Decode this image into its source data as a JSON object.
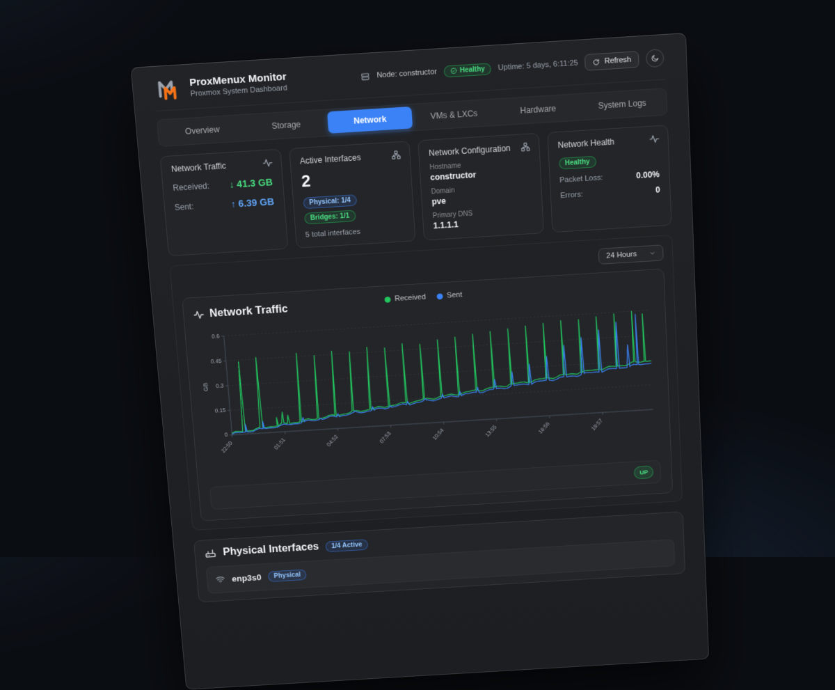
{
  "header": {
    "app_title": "ProxMenux Monitor",
    "app_subtitle": "Proxmox System Dashboard",
    "node_label": "Node: constructor",
    "health_badge": "Healthy",
    "uptime": "Uptime: 5 days, 6:11:25",
    "refresh_label": "Refresh"
  },
  "tabs": [
    {
      "label": "Overview"
    },
    {
      "label": "Storage"
    },
    {
      "label": "Network",
      "active": true
    },
    {
      "label": "VMs & LXCs"
    },
    {
      "label": "Hardware"
    },
    {
      "label": "System Logs"
    }
  ],
  "stats": {
    "traffic": {
      "title": "Network Traffic",
      "received_label": "Received:",
      "received_arrow": "↓",
      "received_value": "41.3 GB",
      "sent_label": "Sent:",
      "sent_arrow": "↑",
      "sent_value": "6.39 GB"
    },
    "interfaces": {
      "title": "Active Interfaces",
      "count": "2",
      "physical_badge": "Physical: 1/4",
      "bridges_badge": "Bridges: 1/1",
      "total": "5 total interfaces"
    },
    "config": {
      "title": "Network Configuration",
      "hostname_label": "Hostname",
      "hostname": "constructor",
      "domain_label": "Domain",
      "domain": "pve",
      "dns_label": "Primary DNS",
      "dns": "1.1.1.1"
    },
    "health": {
      "title": "Network Health",
      "status": "Healthy",
      "packet_loss_label": "Packet Loss:",
      "packet_loss": "0.00%",
      "errors_label": "Errors:",
      "errors": "0"
    }
  },
  "controls": {
    "time_range": "24 Hours"
  },
  "chart_card": {
    "title": "Network Traffic",
    "status_badge": "UP"
  },
  "chart_data": {
    "type": "line",
    "title": "Network Traffic",
    "ylabel": "GB",
    "ylim": [
      0,
      0.6
    ],
    "yticks": [
      0,
      0.15,
      0.3,
      0.45,
      0.6
    ],
    "x_range_hours": 24,
    "grid": true,
    "legend_position": "top-center",
    "x_ticks": [
      {
        "t": 0,
        "label": "22:50"
      },
      {
        "t": 3.02,
        "label": "01:51"
      },
      {
        "t": 6.03,
        "label": "04:52"
      },
      {
        "t": 9.05,
        "label": "07:53"
      },
      {
        "t": 12.07,
        "label": "10:54"
      },
      {
        "t": 15.08,
        "label": "13:55"
      },
      {
        "t": 18.1,
        "label": "16:56"
      },
      {
        "t": 21.12,
        "label": "19:57"
      }
    ],
    "series": [
      {
        "name": "Received",
        "color": "#22c55e",
        "baseline_start": 0.01,
        "baseline_end": 0.3,
        "spikes": [
          [
            0.7,
            0.44
          ],
          [
            1.7,
            0.46
          ],
          [
            2.6,
            0.09
          ],
          [
            2.95,
            0.12
          ],
          [
            3.25,
            0.1
          ],
          [
            4,
            0.47
          ],
          [
            5,
            0.45
          ],
          [
            6,
            0.47
          ],
          [
            7,
            0.46
          ],
          [
            8,
            0.48
          ],
          [
            9,
            0.47
          ],
          [
            10,
            0.49
          ],
          [
            11,
            0.48
          ],
          [
            12,
            0.5
          ],
          [
            13,
            0.51
          ],
          [
            14,
            0.52
          ],
          [
            15,
            0.53
          ],
          [
            16,
            0.54
          ],
          [
            17,
            0.55
          ],
          [
            18,
            0.56
          ],
          [
            19,
            0.57
          ],
          [
            20,
            0.57
          ],
          [
            21,
            0.58
          ],
          [
            22,
            0.59
          ],
          [
            23,
            0.6
          ],
          [
            23.6,
            0.58
          ]
        ]
      },
      {
        "name": "Sent",
        "color": "#3b82f6",
        "baseline_start": 0.004,
        "baseline_end": 0.285,
        "spikes": [
          [
            0.8,
            0.06
          ],
          [
            1.8,
            0.07
          ],
          [
            4.1,
            0.08
          ],
          [
            5.1,
            0.07
          ],
          [
            6.1,
            0.09
          ],
          [
            7.1,
            0.1
          ],
          [
            8.1,
            0.12
          ],
          [
            9.1,
            0.12
          ],
          [
            10.1,
            0.14
          ],
          [
            11.1,
            0.15
          ],
          [
            12.1,
            0.17
          ],
          [
            13.1,
            0.18
          ],
          [
            14.1,
            0.2
          ],
          [
            15.1,
            0.24
          ],
          [
            16.1,
            0.28
          ],
          [
            17.1,
            0.32
          ],
          [
            18.1,
            0.36
          ],
          [
            19.1,
            0.42
          ],
          [
            20.1,
            0.46
          ],
          [
            21.1,
            0.5
          ],
          [
            22.1,
            0.54
          ],
          [
            22.7,
            0.4
          ],
          [
            23.2,
            0.58
          ]
        ]
      }
    ]
  },
  "physical": {
    "title": "Physical Interfaces",
    "active_badge": "1/4 Active",
    "rows": [
      {
        "name": "enp3s0",
        "badge": "Physical"
      }
    ]
  }
}
